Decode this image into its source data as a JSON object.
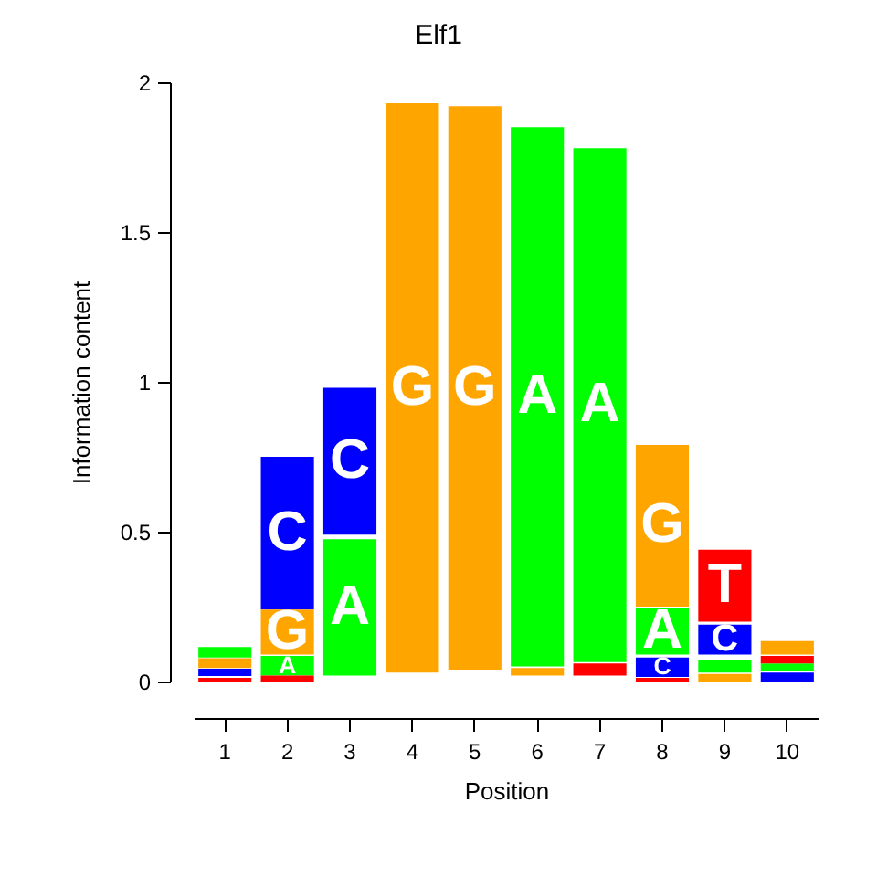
{
  "chart_data": {
    "type": "bar",
    "title": "Elf1",
    "xlabel": "Position",
    "ylabel": "Information content",
    "categories": [
      "1",
      "2",
      "3",
      "4",
      "5",
      "6",
      "7",
      "8",
      "9",
      "10"
    ],
    "series": [
      {
        "name": "A",
        "color": "#00ff00",
        "values": [
          0.035,
          0.065,
          0.455,
          null,
          null,
          1.8,
          1.715,
          0.155,
          0.04,
          0.025
        ],
        "base": [
          0.08,
          0.02,
          0.02,
          null,
          null,
          0.05,
          0.065,
          0.09,
          0.03,
          0.035
        ]
      },
      {
        "name": "C",
        "color": "#0000ff",
        "values": [
          0.025,
          0.51,
          0.49,
          null,
          null,
          null,
          null,
          0.065,
          0.1,
          0.03
        ],
        "base": [
          0.018,
          0.24,
          0.49,
          null,
          null,
          null,
          null,
          0.015,
          0.09,
          0.0
        ]
      },
      {
        "name": "G",
        "color": "#ffa500",
        "values": [
          0.033,
          0.15,
          null,
          1.9,
          1.88,
          0.025,
          null,
          0.54,
          0.025,
          0.045
        ],
        "base": [
          0.045,
          0.09,
          null,
          0.03,
          0.04,
          0.02,
          null,
          0.25,
          0.0,
          0.09
        ]
      },
      {
        "name": "T",
        "color": "#ff0000",
        "values": [
          0.012,
          0.02,
          null,
          null,
          null,
          null,
          0.04,
          0.012,
          0.24,
          0.025
        ],
        "base": [
          0.0,
          0.0,
          null,
          null,
          null,
          null,
          0.02,
          0.0,
          0.2,
          0.06
        ]
      }
    ],
    "ylim": [
      0,
      2
    ],
    "yticks": [
      0,
      0.5,
      1,
      1.5,
      2
    ]
  }
}
